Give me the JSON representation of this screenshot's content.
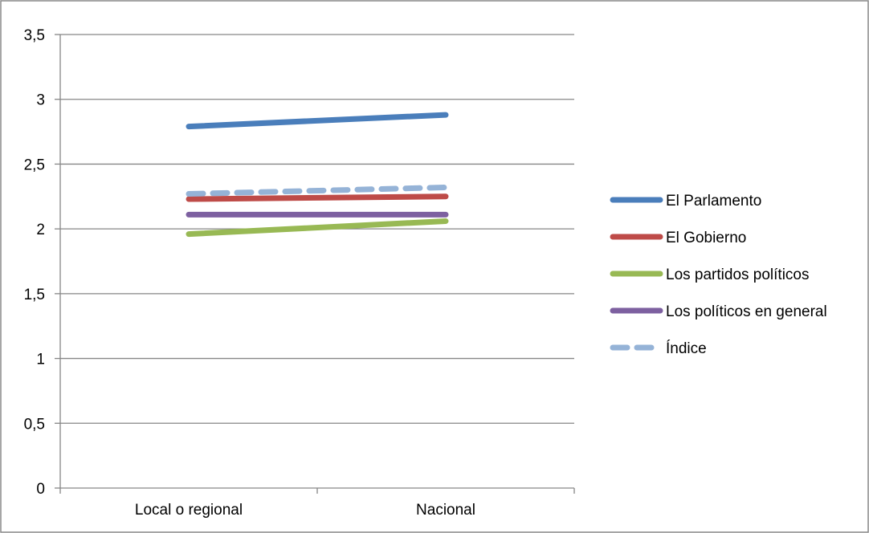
{
  "chart_data": {
    "type": "line",
    "title": "",
    "xlabel": "",
    "ylabel": "",
    "categories": [
      "Local o regional",
      "Nacional"
    ],
    "ylim": [
      0,
      3.5
    ],
    "yticks": [
      0,
      0.5,
      1,
      1.5,
      2,
      2.5,
      3,
      3.5
    ],
    "ytick_labels": [
      "0",
      "0,5",
      "1",
      "1,5",
      "2",
      "2,5",
      "3",
      "3,5"
    ],
    "grid": true,
    "legend_position": "right",
    "series": [
      {
        "name": "El Parlamento",
        "values": [
          2.79,
          2.88
        ],
        "color": "#4a7ebb",
        "dash": false
      },
      {
        "name": "El Gobierno",
        "values": [
          2.23,
          2.25
        ],
        "color": "#be4b48",
        "dash": false
      },
      {
        "name": "Los partidos políticos",
        "values": [
          1.96,
          2.06
        ],
        "color": "#98b954",
        "dash": false
      },
      {
        "name": "Los políticos en general",
        "values": [
          2.11,
          2.11
        ],
        "color": "#7d60a0",
        "dash": false
      },
      {
        "name": "Índice",
        "values": [
          2.27,
          2.32
        ],
        "color": "#95b3d7",
        "dash": true
      }
    ]
  }
}
